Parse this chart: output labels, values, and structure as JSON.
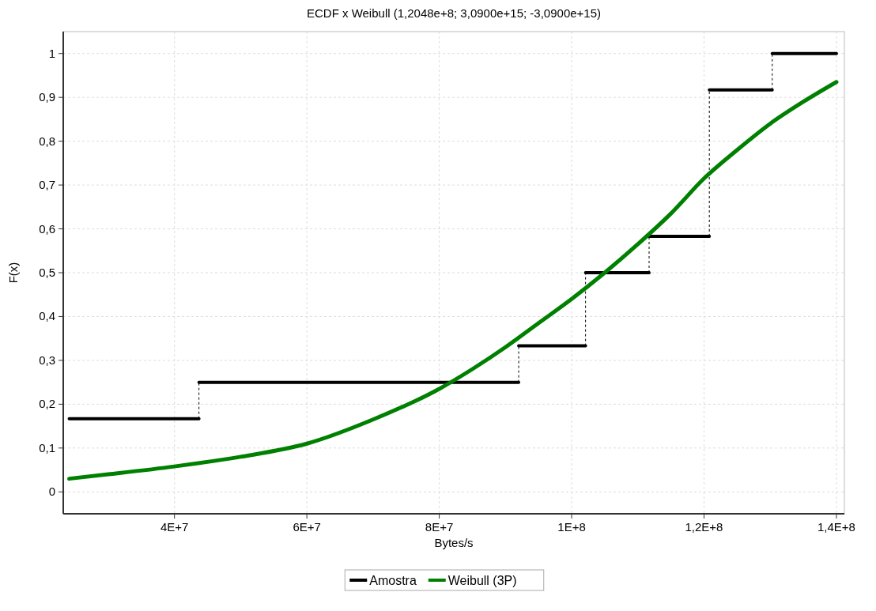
{
  "chart_data": {
    "type": "line",
    "title": "ECDF x Weibull (1,2048e+8; 3,0900e+15; -3,0900e+15)",
    "xlabel": "Bytes/s",
    "ylabel": "F(x)",
    "xlim": [
      23200000,
      141200000
    ],
    "xticks": [
      {
        "value": 40000000,
        "label": "4E+7"
      },
      {
        "value": 60000000,
        "label": "6E+7"
      },
      {
        "value": 80000000,
        "label": "8E+7"
      },
      {
        "value": 100000000,
        "label": "1E+8"
      },
      {
        "value": 120000000,
        "label": "1,2E+8"
      },
      {
        "value": 140000000,
        "label": "1,4E+8"
      }
    ],
    "ylim": [
      -0.05,
      1.05
    ],
    "yticks": [
      {
        "value": 0,
        "label": "0"
      },
      {
        "value": 0.1,
        "label": "0,1"
      },
      {
        "value": 0.2,
        "label": "0,2"
      },
      {
        "value": 0.3,
        "label": "0,3"
      },
      {
        "value": 0.4,
        "label": "0,4"
      },
      {
        "value": 0.5,
        "label": "0,5"
      },
      {
        "value": 0.6,
        "label": "0,6"
      },
      {
        "value": 0.7,
        "label": "0,7"
      },
      {
        "value": 0.8,
        "label": "0,8"
      },
      {
        "value": 0.9,
        "label": "0,9"
      },
      {
        "value": 1,
        "label": "1"
      }
    ],
    "grid": true,
    "legend": "bottom",
    "series": [
      {
        "name": "Amostra",
        "type": "step",
        "color": "#000000",
        "x": [
          24100000,
          43700000,
          92000000,
          102100000,
          111700000,
          120800000,
          130300000,
          140000000
        ],
        "values": [
          0.167,
          0.25,
          0.333,
          0.5,
          0.583,
          0.917,
          1,
          1
        ]
      },
      {
        "name": "Weibull (3P)",
        "color": "#008000",
        "x": [
          24100000,
          30000000,
          40000000,
          50000000,
          60000000,
          70000000,
          80000000,
          85000000,
          90000000,
          95000000,
          100000000,
          105000000,
          110000000,
          115000000,
          120000000,
          125000000,
          130000000,
          135000000,
          140000000
        ],
        "values": [
          0.03,
          0.04,
          0.058,
          0.08,
          0.11,
          0.165,
          0.235,
          0.28,
          0.33,
          0.385,
          0.44,
          0.5,
          0.565,
          0.635,
          0.715,
          0.78,
          0.84,
          0.89,
          0.935
        ]
      }
    ]
  }
}
